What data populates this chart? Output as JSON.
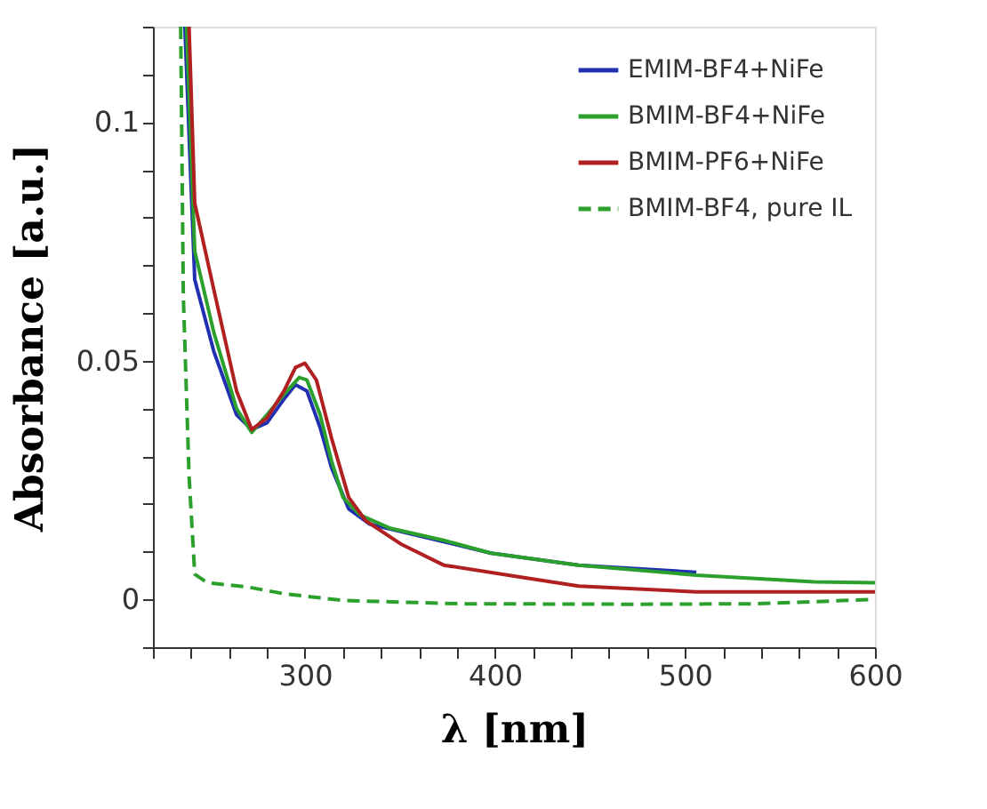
{
  "chart_data": {
    "type": "line",
    "xlabel": "λ [nm]",
    "ylabel": "Absorbance [a.u.]",
    "xlim": [
      220,
      600
    ],
    "ylim": [
      -0.01,
      0.12
    ],
    "xticks": [
      {
        "value": 220,
        "label": null
      },
      {
        "value": 240,
        "label": null
      },
      {
        "value": 260,
        "label": null
      },
      {
        "value": 280,
        "label": null
      },
      300,
      {
        "value": 320,
        "label": null
      },
      {
        "value": 340,
        "label": null
      },
      {
        "value": 360,
        "label": null
      },
      {
        "value": 380,
        "label": null
      },
      400,
      {
        "value": 420,
        "label": null
      },
      {
        "value": 440,
        "label": null
      },
      {
        "value": 460,
        "label": null
      },
      {
        "value": 480,
        "label": null
      },
      500,
      {
        "value": 520,
        "label": null
      },
      {
        "value": 540,
        "label": null
      },
      {
        "value": 560,
        "label": null
      },
      {
        "value": 580,
        "label": null
      },
      600
    ],
    "yticks": [
      {
        "value": -0.01,
        "label": null
      },
      0,
      {
        "value": 0.01,
        "label": null
      },
      {
        "value": 0.02,
        "label": null
      },
      {
        "value": 0.03,
        "label": null
      },
      {
        "value": 0.04,
        "label": null
      },
      0.05,
      {
        "value": 0.06,
        "label": null
      },
      {
        "value": 0.07,
        "label": null
      },
      {
        "value": 0.08,
        "label": null
      },
      {
        "value": 0.09,
        "label": null
      },
      0.1,
      {
        "value": 0.11,
        "label": null
      },
      {
        "value": 0.12,
        "label": null
      }
    ],
    "grid": false,
    "legend": "top right",
    "marker": "none",
    "series": [
      {
        "name": "EMIM-BF4+NiFe",
        "color": "#2030b0",
        "line_style": "solid",
        "x": [
          236.8,
          242,
          252,
          264,
          272,
          280,
          289,
          295,
          301,
          308,
          314,
          323,
          334,
          373,
          398,
          444,
          506
        ],
        "values": [
          0.12,
          0.067,
          0.052,
          0.0387,
          0.0356,
          0.037,
          0.042,
          0.045,
          0.0437,
          0.036,
          0.0276,
          0.019,
          0.0158,
          0.0121,
          0.0097,
          0.0072,
          0.0057
        ]
      },
      {
        "name": "BMIM-BF4+NiFe",
        "color": "#2ca02c",
        "line_style": "solid",
        "x": [
          237.7,
          242,
          252,
          264,
          272,
          280,
          289,
          297,
          301,
          308,
          314,
          320,
          329,
          345,
          373,
          398,
          444,
          506,
          568,
          600
        ],
        "values": [
          0.12,
          0.073,
          0.056,
          0.04,
          0.035,
          0.0387,
          0.043,
          0.0465,
          0.046,
          0.0387,
          0.029,
          0.0214,
          0.0177,
          0.0149,
          0.0124,
          0.0097,
          0.0072,
          0.0051,
          0.0037,
          0.0035
        ]
      },
      {
        "name": "BMIM-PF6+NiFe",
        "color": "#b02020",
        "line_style": "solid",
        "x": [
          239,
          242,
          252,
          264,
          272,
          280,
          289,
          295,
          300,
          306,
          314,
          323,
          332,
          351,
          373,
          413,
          444,
          506,
          600
        ],
        "values": [
          0.12,
          0.083,
          0.065,
          0.0437,
          0.0356,
          0.038,
          0.0437,
          0.0486,
          0.0495,
          0.046,
          0.0338,
          0.0214,
          0.0165,
          0.0115,
          0.0072,
          0.0047,
          0.0028,
          0.0016,
          0.0016
        ]
      },
      {
        "name": "BMIM-BF4, pure IL",
        "color": "#2ca02c",
        "line_style": "dashed",
        "x": [
          234.6,
          236,
          239,
          242,
          248.6,
          270,
          289,
          320,
          382,
          475,
          537,
          600
        ],
        "values": [
          0.12,
          0.0635,
          0.026,
          0.0053,
          0.0035,
          0.0026,
          0.0012,
          -0.0002,
          -0.0009,
          -0.001,
          -0.0009,
          0.0
        ]
      }
    ]
  }
}
